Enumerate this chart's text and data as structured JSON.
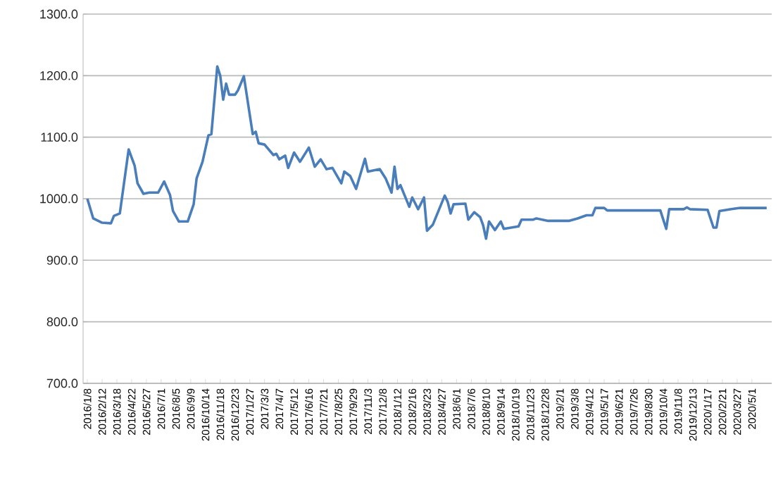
{
  "chart_data": {
    "type": "line",
    "x": [
      "2016-01-08",
      "2016-01-22",
      "2016-02-12",
      "2016-03-04",
      "2016-03-11",
      "2016-03-25",
      "2016-04-15",
      "2016-04-29",
      "2016-05-06",
      "2016-05-20",
      "2016-06-03",
      "2016-06-24",
      "2016-07-08",
      "2016-07-22",
      "2016-07-29",
      "2016-08-12",
      "2016-09-02",
      "2016-09-16",
      "2016-09-23",
      "2016-10-07",
      "2016-10-21",
      "2016-10-28",
      "2016-11-11",
      "2016-11-18",
      "2016-11-25",
      "2016-12-02",
      "2016-12-09",
      "2016-12-23",
      "2016-12-30",
      "2017-01-13",
      "2017-02-03",
      "2017-02-10",
      "2017-02-17",
      "2017-03-03",
      "2017-03-24",
      "2017-03-31",
      "2017-04-07",
      "2017-04-21",
      "2017-04-28",
      "2017-05-12",
      "2017-05-26",
      "2017-06-16",
      "2017-06-30",
      "2017-07-14",
      "2017-07-28",
      "2017-08-11",
      "2017-09-01",
      "2017-09-08",
      "2017-09-22",
      "2017-10-06",
      "2017-10-27",
      "2017-11-03",
      "2017-12-01",
      "2017-12-15",
      "2017-12-29",
      "2018-01-05",
      "2018-01-12",
      "2018-01-19",
      "2018-02-09",
      "2018-02-16",
      "2018-03-02",
      "2018-03-16",
      "2018-03-23",
      "2018-04-06",
      "2018-05-04",
      "2018-05-11",
      "2018-05-18",
      "2018-05-25",
      "2018-06-22",
      "2018-06-29",
      "2018-07-13",
      "2018-07-27",
      "2018-08-03",
      "2018-08-10",
      "2018-08-17",
      "2018-08-31",
      "2018-09-14",
      "2018-09-21",
      "2018-10-26",
      "2018-11-02",
      "2018-11-30",
      "2018-12-07",
      "2019-01-04",
      "2019-02-22",
      "2019-03-15",
      "2019-04-05",
      "2019-04-19",
      "2019-04-26",
      "2019-05-17",
      "2019-05-24",
      "2019-09-27",
      "2019-10-11",
      "2019-10-18",
      "2019-11-22",
      "2019-11-29",
      "2019-12-06",
      "2020-01-17",
      "2020-01-31",
      "2020-02-07",
      "2020-02-14",
      "2020-03-13",
      "2020-04-03",
      "2020-06-05"
    ],
    "values": [
      1000,
      968,
      961,
      960,
      972,
      976,
      1080,
      1054,
      1025,
      1008,
      1010,
      1010,
      1028,
      1006,
      980,
      963,
      963,
      991,
      1033,
      1060,
      1103,
      1105,
      1215,
      1200,
      1161,
      1187,
      1169,
      1169,
      1176,
      1199,
      1105,
      1109,
      1090,
      1088,
      1071,
      1073,
      1064,
      1070,
      1050,
      1075,
      1060,
      1083,
      1052,
      1064,
      1048,
      1050,
      1025,
      1044,
      1037,
      1016,
      1065,
      1044,
      1048,
      1033,
      1010,
      1052,
      1016,
      1022,
      987,
      1002,
      983,
      1002,
      948,
      958,
      1005,
      995,
      976,
      991,
      992,
      966,
      978,
      970,
      957,
      935,
      963,
      949,
      963,
      951,
      955,
      966,
      966,
      968,
      964,
      964,
      968,
      973,
      973,
      985,
      985,
      981,
      981,
      951,
      983,
      983,
      986,
      983,
      982,
      953,
      953,
      980,
      983,
      985,
      985
    ],
    "color": "#4a7ebb",
    "xlim": [
      "2015-12-29",
      "2020-06-17"
    ],
    "xticks": [
      {
        "value": "2016-01-08",
        "label": "2016/1/8"
      },
      {
        "value": "2016-02-12",
        "label": "2016/2/12"
      },
      {
        "value": "2016-03-18",
        "label": "2016/3/18"
      },
      {
        "value": "2016-04-22",
        "label": "2016/4/22"
      },
      {
        "value": "2016-05-27",
        "label": "2016/5/27"
      },
      {
        "value": "2016-07-01",
        "label": "2016/7/1"
      },
      {
        "value": "2016-08-05",
        "label": "2016/8/5"
      },
      {
        "value": "2016-09-09",
        "label": "2016/9/9"
      },
      {
        "value": "2016-10-14",
        "label": "2016/10/14"
      },
      {
        "value": "2016-11-18",
        "label": "2016/11/18"
      },
      {
        "value": "2016-12-23",
        "label": "2016/12/23"
      },
      {
        "value": "2017-01-27",
        "label": "2017/1/27"
      },
      {
        "value": "2017-03-03",
        "label": "2017/3/3"
      },
      {
        "value": "2017-04-07",
        "label": "2017/4/7"
      },
      {
        "value": "2017-05-12",
        "label": "2017/5/12"
      },
      {
        "value": "2017-06-16",
        "label": "2017/6/16"
      },
      {
        "value": "2017-07-21",
        "label": "2017/7/21"
      },
      {
        "value": "2017-08-25",
        "label": "2017/8/25"
      },
      {
        "value": "2017-09-29",
        "label": "2017/9/29"
      },
      {
        "value": "2017-11-03",
        "label": "2017/11/3"
      },
      {
        "value": "2017-12-08",
        "label": "2017/12/8"
      },
      {
        "value": "2018-01-12",
        "label": "2018/1/12"
      },
      {
        "value": "2018-02-16",
        "label": "2018/2/16"
      },
      {
        "value": "2018-03-23",
        "label": "2018/3/23"
      },
      {
        "value": "2018-04-27",
        "label": "2018/4/27"
      },
      {
        "value": "2018-06-01",
        "label": "2018/6/1"
      },
      {
        "value": "2018-07-06",
        "label": "2018/7/6"
      },
      {
        "value": "2018-08-10",
        "label": "2018/8/10"
      },
      {
        "value": "2018-09-14",
        "label": "2018/9/14"
      },
      {
        "value": "2018-10-19",
        "label": "2018/10/19"
      },
      {
        "value": "2018-11-23",
        "label": "2018/11/23"
      },
      {
        "value": "2018-12-28",
        "label": "2018/12/28"
      },
      {
        "value": "2019-02-01",
        "label": "2019/2/1"
      },
      {
        "value": "2019-03-08",
        "label": "2019/3/8"
      },
      {
        "value": "2019-04-12",
        "label": "2019/4/12"
      },
      {
        "value": "2019-05-17",
        "label": "2019/5/17"
      },
      {
        "value": "2019-06-21",
        "label": "2019/6/21"
      },
      {
        "value": "2019-07-26",
        "label": "2019/7/26"
      },
      {
        "value": "2019-08-30",
        "label": "2019/8/30"
      },
      {
        "value": "2019-10-04",
        "label": "2019/10/4"
      },
      {
        "value": "2019-11-08",
        "label": "2019/11/8"
      },
      {
        "value": "2019-12-13",
        "label": "2019/12/13"
      },
      {
        "value": "2020-01-17",
        "label": "2020/1/17"
      },
      {
        "value": "2020-02-21",
        "label": "2020/2/21"
      },
      {
        "value": "2020-03-27",
        "label": "2020/3/27"
      },
      {
        "value": "2020-05-01",
        "label": "2020/5/1"
      }
    ],
    "ylim": [
      700,
      1300
    ],
    "yticks": [
      {
        "value": 700,
        "label": "700.0"
      },
      {
        "value": 800,
        "label": "800.0"
      },
      {
        "value": 900,
        "label": "900.0"
      },
      {
        "value": 1000,
        "label": "1000.0"
      },
      {
        "value": 1100,
        "label": "1100.0"
      },
      {
        "value": 1200,
        "label": "1200.0"
      },
      {
        "value": 1300,
        "label": "1300.0"
      }
    ],
    "grid": "y",
    "marker": "none",
    "line_style": "solid"
  }
}
